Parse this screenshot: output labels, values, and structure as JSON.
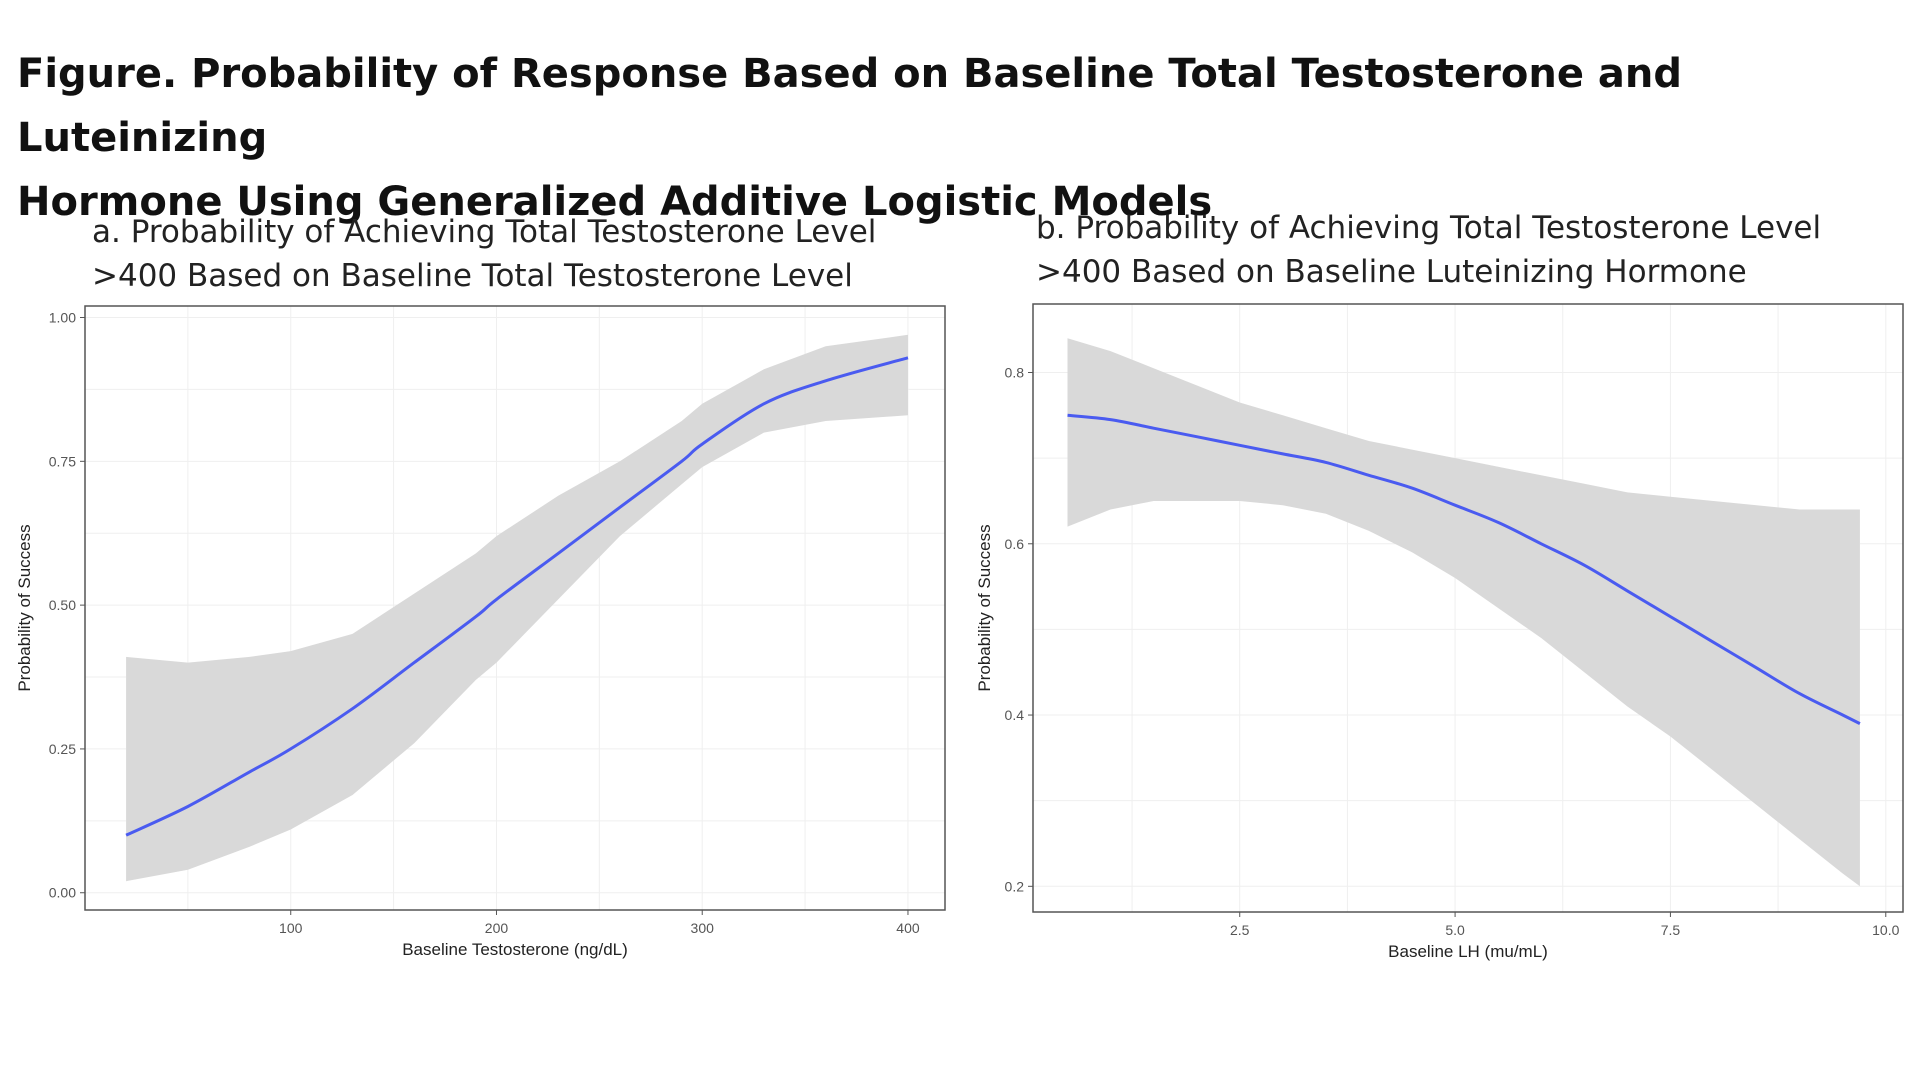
{
  "figure": {
    "title_line1": "Figure. Probability of Response Based on Baseline Total Testosterone and Luteinizing",
    "title_line2": "Hormone Using Generalized Additive Logistic Models"
  },
  "panels": {
    "a": {
      "title_line1": "a. Probability of Achieving Total Testosterone Level",
      "title_line2": ">400 Based on Baseline Total Testosterone Level"
    },
    "b": {
      "title_line1": "b. Probability of Achieving Total Testosterone Level",
      "title_line2": ">400 Based on Baseline Luteinizing Hormone"
    }
  },
  "colors": {
    "line": "#4a5bf0",
    "band": "#d9d9d9",
    "grid": "#efefef",
    "frame": "#555555"
  },
  "chart_data": [
    {
      "type": "line",
      "panel": "a",
      "xlabel": "Baseline Testosterone (ng/dL)",
      "ylabel": "Probability of Success",
      "xlim": [
        0,
        418
      ],
      "ylim": [
        -0.03,
        1.02
      ],
      "x_ticks": [
        100,
        200,
        300,
        400
      ],
      "x_tick_labels": [
        "100",
        "200",
        "300",
        "400"
      ],
      "y_ticks": [
        0,
        0.25,
        0.5,
        0.75,
        1
      ],
      "y_tick_labels": [
        "0.00",
        "0.25",
        "0.50",
        "0.75",
        "1.00"
      ],
      "grid": true,
      "series": [
        {
          "x": [
            20,
            50,
            80,
            100,
            130,
            160,
            190,
            200,
            230,
            260,
            290,
            300,
            330,
            360,
            400
          ],
          "y": [
            0.1,
            0.15,
            0.21,
            0.25,
            0.32,
            0.4,
            0.48,
            0.51,
            0.59,
            0.67,
            0.75,
            0.78,
            0.85,
            0.89,
            0.93
          ],
          "lower": [
            0.02,
            0.04,
            0.08,
            0.11,
            0.17,
            0.26,
            0.37,
            0.4,
            0.51,
            0.62,
            0.71,
            0.74,
            0.8,
            0.82,
            0.83
          ],
          "upper": [
            0.41,
            0.4,
            0.41,
            0.42,
            0.45,
            0.52,
            0.59,
            0.62,
            0.69,
            0.75,
            0.82,
            0.85,
            0.91,
            0.95,
            0.97
          ]
        }
      ]
    },
    {
      "type": "line",
      "panel": "b",
      "xlabel": "Baseline LH (mu/mL)",
      "ylabel": "Probability of Success",
      "xlim": [
        0.1,
        10.2
      ],
      "ylim": [
        0.17,
        0.88
      ],
      "x_ticks": [
        2.5,
        5,
        7.5,
        10
      ],
      "x_tick_labels": [
        "2.5",
        "5.0",
        "7.5",
        "10.0"
      ],
      "y_ticks": [
        0.2,
        0.4,
        0.6,
        0.8
      ],
      "y_tick_labels": [
        "0.2",
        "0.4",
        "0.6",
        "0.8"
      ],
      "grid": true,
      "series": [
        {
          "x": [
            0.5,
            1,
            1.5,
            2,
            2.5,
            3,
            3.5,
            4,
            4.5,
            5,
            5.5,
            6,
            6.5,
            7,
            7.5,
            8,
            8.5,
            9,
            9.5,
            9.7
          ],
          "y": [
            0.75,
            0.745,
            0.735,
            0.725,
            0.715,
            0.705,
            0.695,
            0.68,
            0.665,
            0.645,
            0.625,
            0.6,
            0.575,
            0.545,
            0.515,
            0.485,
            0.455,
            0.425,
            0.4,
            0.39
          ],
          "lower": [
            0.62,
            0.64,
            0.65,
            0.65,
            0.65,
            0.645,
            0.635,
            0.615,
            0.59,
            0.56,
            0.525,
            0.49,
            0.45,
            0.41,
            0.375,
            0.335,
            0.295,
            0.255,
            0.215,
            0.2
          ],
          "upper": [
            0.84,
            0.825,
            0.805,
            0.785,
            0.765,
            0.75,
            0.735,
            0.72,
            0.71,
            0.7,
            0.69,
            0.68,
            0.67,
            0.66,
            0.655,
            0.65,
            0.645,
            0.64,
            0.64,
            0.64
          ]
        }
      ]
    }
  ]
}
